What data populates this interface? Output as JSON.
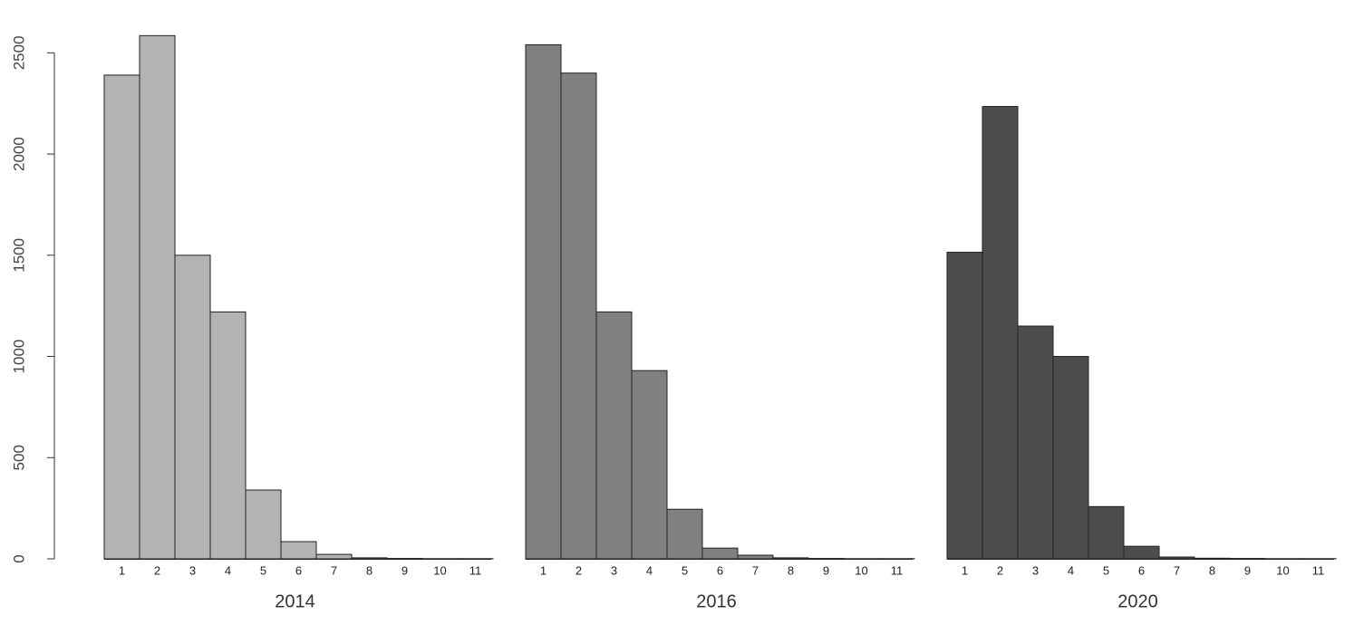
{
  "chart_data": [
    {
      "type": "bar",
      "xlabel": "2014",
      "color": "#b3b3b3",
      "categories": [
        "1",
        "2",
        "3",
        "4",
        "5",
        "6",
        "7",
        "8",
        "9",
        "10",
        "11"
      ],
      "values": [
        2390,
        2585,
        1500,
        1220,
        340,
        85,
        22,
        5,
        2,
        1,
        1
      ],
      "ylim": [
        0,
        2600
      ],
      "yticks": [
        0,
        500,
        1000,
        1500,
        2000,
        2500
      ]
    },
    {
      "type": "bar",
      "xlabel": "2016",
      "color": "#808080",
      "categories": [
        "1",
        "2",
        "3",
        "4",
        "5",
        "6",
        "7",
        "8",
        "9",
        "10",
        "11"
      ],
      "values": [
        2540,
        2400,
        1220,
        930,
        245,
        53,
        18,
        5,
        2,
        1,
        1
      ],
      "ylim": [
        0,
        2600
      ]
    },
    {
      "type": "bar",
      "xlabel": "2020",
      "color": "#4d4d4d",
      "categories": [
        "1",
        "2",
        "3",
        "4",
        "5",
        "6",
        "7",
        "8",
        "9",
        "10",
        "11"
      ],
      "values": [
        1515,
        2235,
        1150,
        1000,
        258,
        62,
        9,
        3,
        2,
        1,
        1
      ],
      "ylim": [
        0,
        2600
      ]
    }
  ]
}
